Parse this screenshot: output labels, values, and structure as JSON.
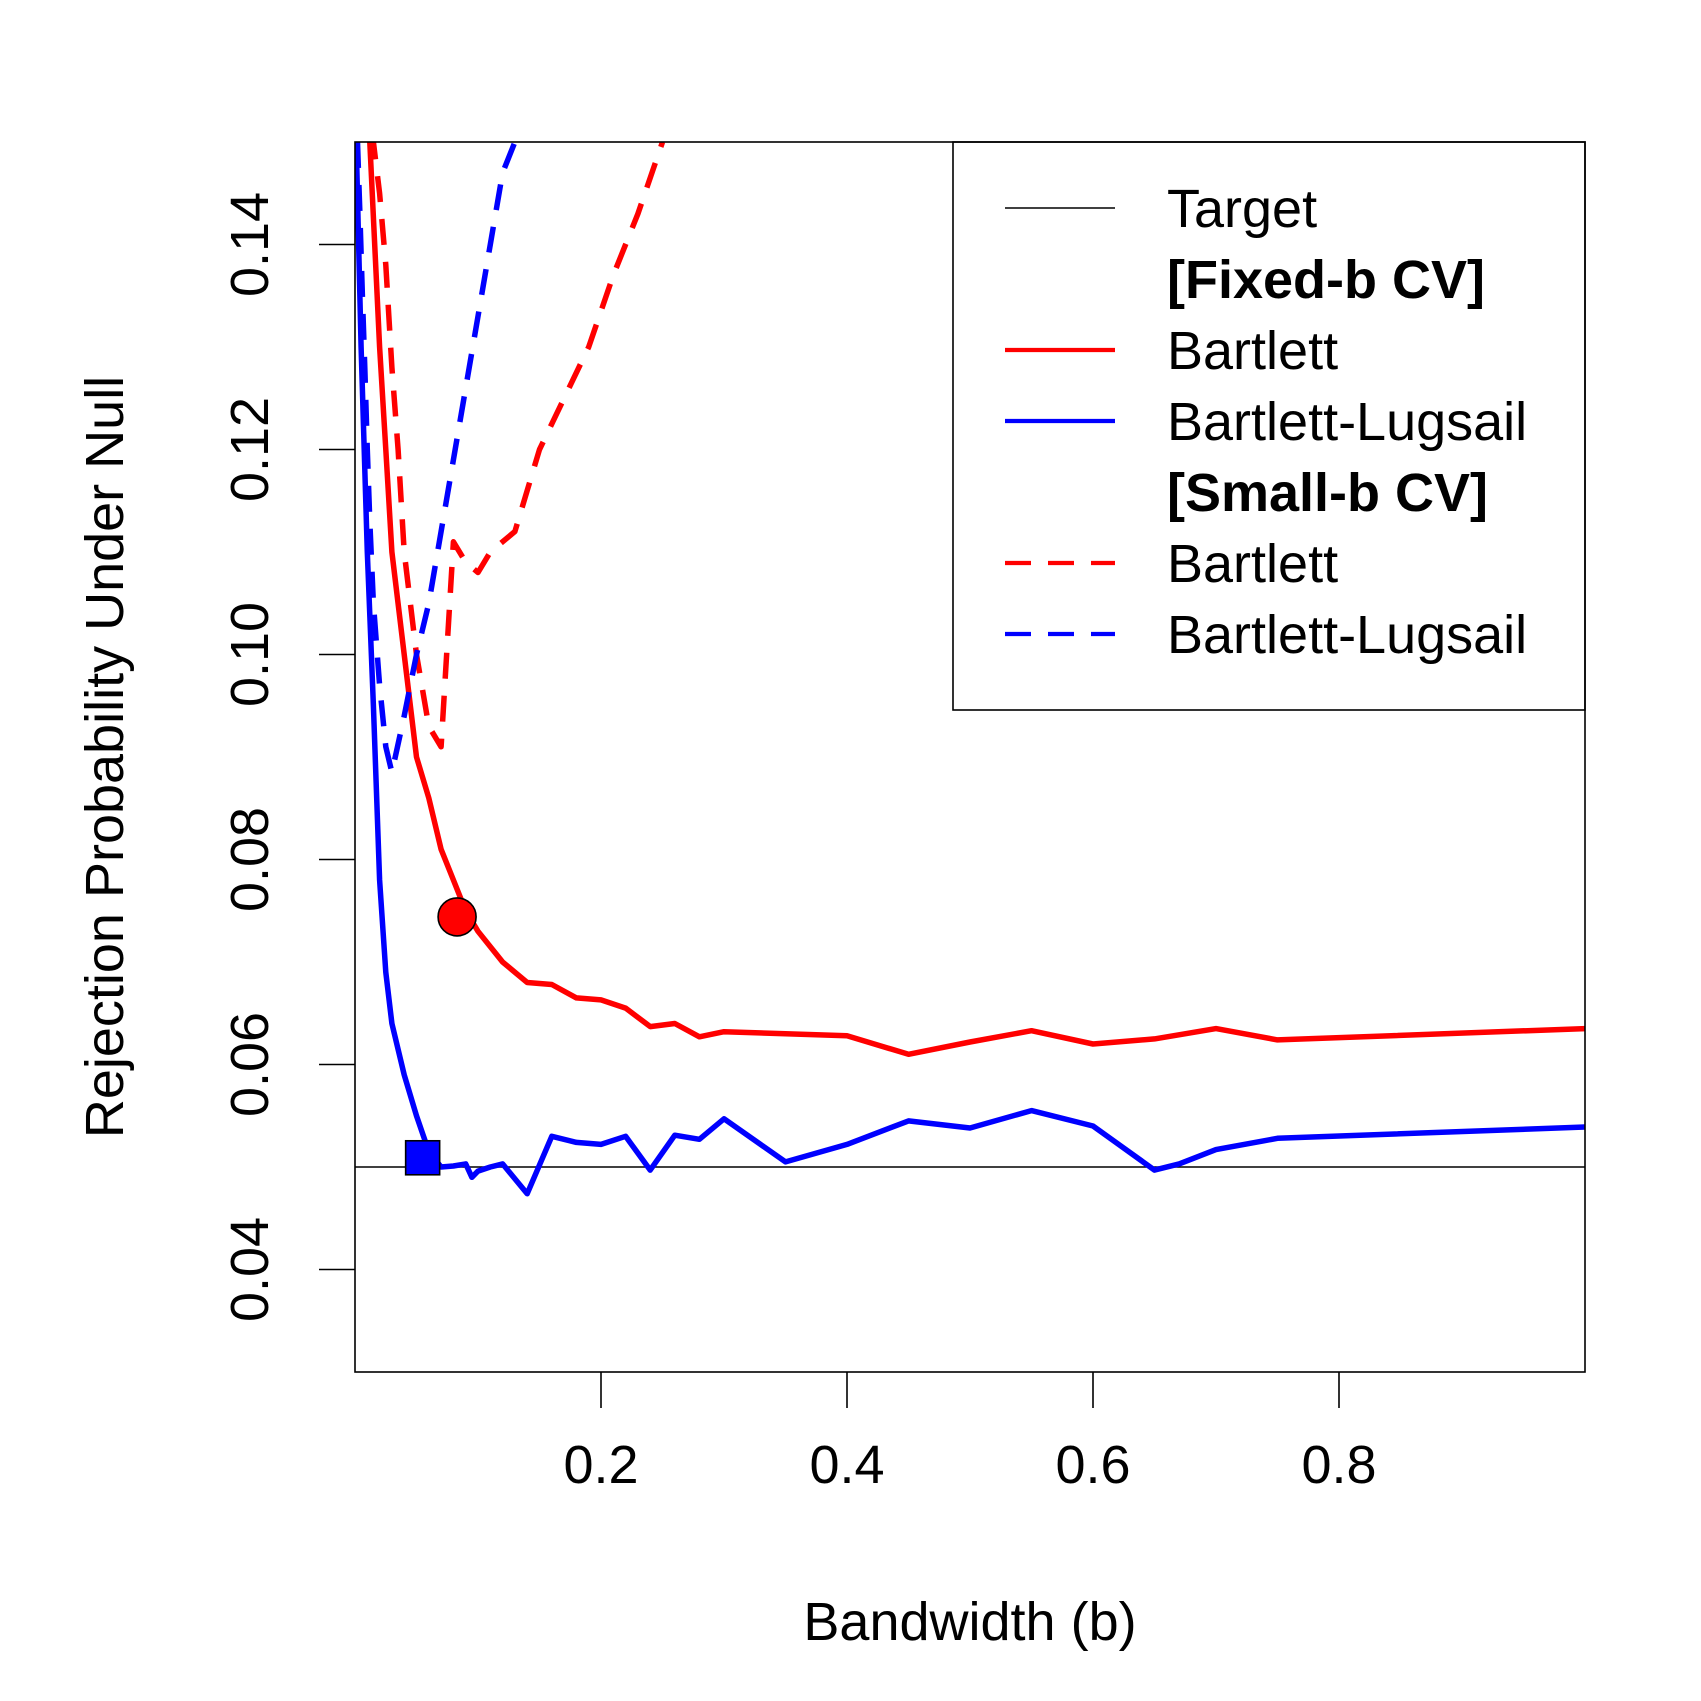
{
  "chart_data": {
    "type": "line",
    "xlabel": "Bandwidth (b)",
    "ylabel": "Rejection Probability Under Null",
    "xlim": [
      0.0,
      1.0
    ],
    "ylim": [
      0.03,
      0.15
    ],
    "x_ticks": [
      {
        "value": 0.2,
        "label": "0.2"
      },
      {
        "value": 0.4,
        "label": "0.4"
      },
      {
        "value": 0.6,
        "label": "0.6"
      },
      {
        "value": 0.8,
        "label": "0.8"
      }
    ],
    "y_ticks": [
      {
        "value": 0.04,
        "label": "0.04"
      },
      {
        "value": 0.06,
        "label": "0.06"
      },
      {
        "value": 0.08,
        "label": "0.08"
      },
      {
        "value": 0.1,
        "label": "0.10"
      },
      {
        "value": 0.12,
        "label": "0.12"
      },
      {
        "value": 0.14,
        "label": "0.14"
      }
    ],
    "grid": false,
    "legend_position": "top-right",
    "target": {
      "name": "Target",
      "y": 0.05,
      "color": "#000000"
    },
    "legend": [
      {
        "kind": "line",
        "label": "Target",
        "color": "#000000",
        "dash": false,
        "thin": true
      },
      {
        "kind": "header",
        "label": "[Fixed-b CV]"
      },
      {
        "kind": "line",
        "label": "Bartlett",
        "color": "#ff0000",
        "dash": false
      },
      {
        "kind": "line",
        "label": "Bartlett-Lugsail",
        "color": "#0000ff",
        "dash": false
      },
      {
        "kind": "header",
        "label": "[Small-b CV]"
      },
      {
        "kind": "line",
        "label": "Bartlett",
        "color": "#ff0000",
        "dash": true
      },
      {
        "kind": "line",
        "label": "Bartlett-Lugsail",
        "color": "#0000ff",
        "dash": true
      }
    ],
    "series": [
      {
        "name": "Bartlett",
        "group": "[Fixed-b CV]",
        "color": "#ff0000",
        "dash": false,
        "x": [
          0.012,
          0.02,
          0.025,
          0.03,
          0.04,
          0.05,
          0.06,
          0.07,
          0.08,
          0.09,
          0.1,
          0.12,
          0.14,
          0.16,
          0.18,
          0.2,
          0.22,
          0.24,
          0.26,
          0.28,
          0.3,
          0.35,
          0.4,
          0.45,
          0.5,
          0.55,
          0.6,
          0.65,
          0.7,
          0.75,
          1.0
        ],
        "y": [
          0.15,
          0.13,
          0.12,
          0.11,
          0.1,
          0.09,
          0.086,
          0.081,
          0.078,
          0.075,
          0.073,
          0.07,
          0.068,
          0.0678,
          0.0665,
          0.0663,
          0.0655,
          0.0637,
          0.064,
          0.0627,
          0.0632,
          0.063,
          0.0628,
          0.061,
          0.0622,
          0.0633,
          0.062,
          0.0625,
          0.0635,
          0.0624,
          0.0635
        ]
      },
      {
        "name": "Bartlett-Lugsail",
        "group": "[Fixed-b CV]",
        "color": "#0000ff",
        "dash": false,
        "x": [
          0.001,
          0.005,
          0.01,
          0.015,
          0.02,
          0.025,
          0.03,
          0.04,
          0.05,
          0.06,
          0.07,
          0.08,
          0.09,
          0.095,
          0.1,
          0.11,
          0.12,
          0.14,
          0.16,
          0.18,
          0.2,
          0.22,
          0.24,
          0.26,
          0.28,
          0.3,
          0.35,
          0.4,
          0.45,
          0.5,
          0.55,
          0.6,
          0.65,
          0.67,
          0.7,
          0.75,
          1.0
        ],
        "y": [
          0.15,
          0.13,
          0.11,
          0.095,
          0.078,
          0.069,
          0.064,
          0.059,
          0.055,
          0.0515,
          0.05,
          0.0501,
          0.0503,
          0.049,
          0.0496,
          0.05,
          0.0503,
          0.0474,
          0.053,
          0.0524,
          0.0522,
          0.053,
          0.0497,
          0.0531,
          0.0527,
          0.0547,
          0.0505,
          0.0522,
          0.0545,
          0.0538,
          0.0555,
          0.054,
          0.0497,
          0.0503,
          0.0517,
          0.0528,
          0.0539
        ]
      },
      {
        "name": "Bartlett",
        "group": "[Small-b CV]",
        "color": "#ff0000",
        "dash": true,
        "x": [
          0.01,
          0.015,
          0.02,
          0.025,
          0.03,
          0.035,
          0.04,
          0.05,
          0.06,
          0.07,
          0.08,
          0.09,
          0.1,
          0.11,
          0.13,
          0.15,
          0.17,
          0.19,
          0.21,
          0.23,
          0.25
        ],
        "y": [
          0.155,
          0.15,
          0.145,
          0.138,
          0.128,
          0.12,
          0.11,
          0.1,
          0.093,
          0.091,
          0.111,
          0.109,
          0.108,
          0.11,
          0.112,
          0.12,
          0.125,
          0.13,
          0.137,
          0.143,
          0.15
        ]
      },
      {
        "name": "Bartlett-Lugsail",
        "group": "[Small-b CV]",
        "color": "#0000ff",
        "dash": true,
        "x": [
          0.002,
          0.004,
          0.006,
          0.008,
          0.01,
          0.012,
          0.015,
          0.02,
          0.025,
          0.03,
          0.04,
          0.05,
          0.06,
          0.07,
          0.08,
          0.09,
          0.1,
          0.11,
          0.12,
          0.13,
          0.14,
          0.15,
          0.16
        ],
        "y": [
          0.15,
          0.143,
          0.135,
          0.128,
          0.12,
          0.113,
          0.105,
          0.097,
          0.091,
          0.0885,
          0.094,
          0.1,
          0.105,
          0.112,
          0.119,
          0.126,
          0.133,
          0.14,
          0.147,
          0.15,
          0.153,
          0.155,
          0.157
        ]
      }
    ],
    "markers": [
      {
        "series": "Bartlett",
        "group": "[Fixed-b CV]",
        "shape": "circle",
        "x": 0.083,
        "y": 0.0744,
        "color": "#ff0000"
      },
      {
        "series": "Bartlett-Lugsail",
        "group": "[Fixed-b CV]",
        "shape": "square",
        "x": 0.055,
        "y": 0.0509,
        "color": "#0000ff"
      }
    ]
  }
}
